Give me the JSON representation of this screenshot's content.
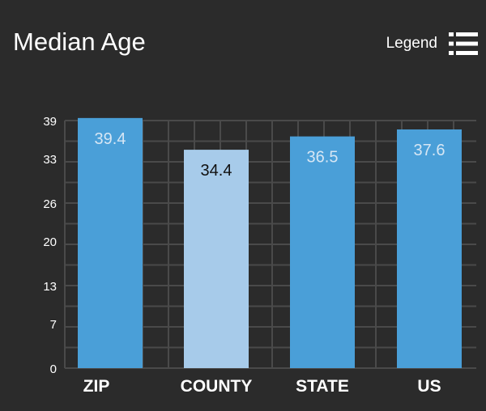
{
  "header": {
    "title": "Median Age",
    "legend_label": "Legend",
    "legend_icon": "list-icon"
  },
  "colors": {
    "background": "#2b2b2b",
    "bar": "#4a9fd8",
    "bar_highlight": "#a7cbea",
    "grid": "#4a4a4a",
    "label_light": "#d6e6f4",
    "label_dark": "#111111"
  },
  "chart_data": {
    "type": "bar",
    "title": "Median Age",
    "categories": [
      "ZIP",
      "COUNTY",
      "STATE",
      "US"
    ],
    "values": [
      39.4,
      34.4,
      36.5,
      37.6
    ],
    "data_labels": [
      "39.4",
      "34.4",
      "36.5",
      "37.6"
    ],
    "highlight_index": 1,
    "yticks": [
      0,
      7,
      13,
      20,
      26,
      33,
      39
    ],
    "ylim": [
      0,
      39
    ],
    "xlabel": "",
    "ylabel": "",
    "grid": true,
    "legend": "hidden"
  }
}
